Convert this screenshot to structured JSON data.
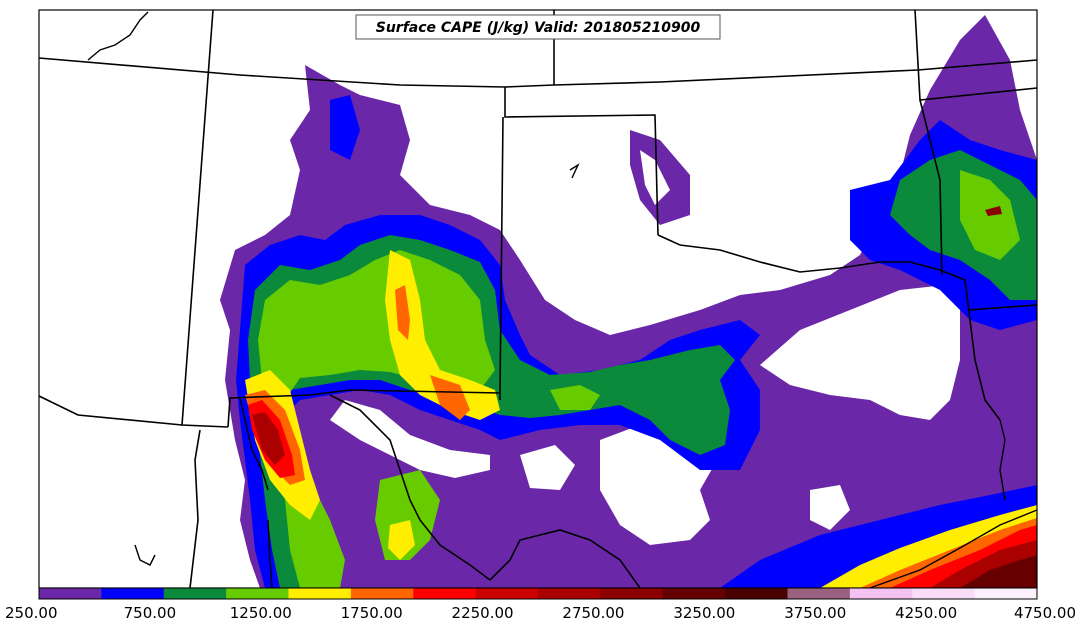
{
  "map": {
    "title": "Surface CAPE (J/kg) Valid: 201805210900",
    "colorbar": {
      "colors": [
        "#6a28a8",
        "#0000ff",
        "#0a8a3a",
        "#66cc00",
        "#ffee00",
        "#ff6600",
        "#ff0000",
        "#cc0000",
        "#aa0000",
        "#8b0000",
        "#660000",
        "#4a0000",
        "#9a6080",
        "#f3c2f3",
        "#f8dcf8",
        "#fdf0fd"
      ],
      "tick_labels": [
        "250.00",
        "750.00",
        "1250.00",
        "1750.00",
        "2250.00",
        "2750.00",
        "3250.00",
        "3750.00",
        "4250.00",
        "4750.00"
      ]
    }
  }
}
